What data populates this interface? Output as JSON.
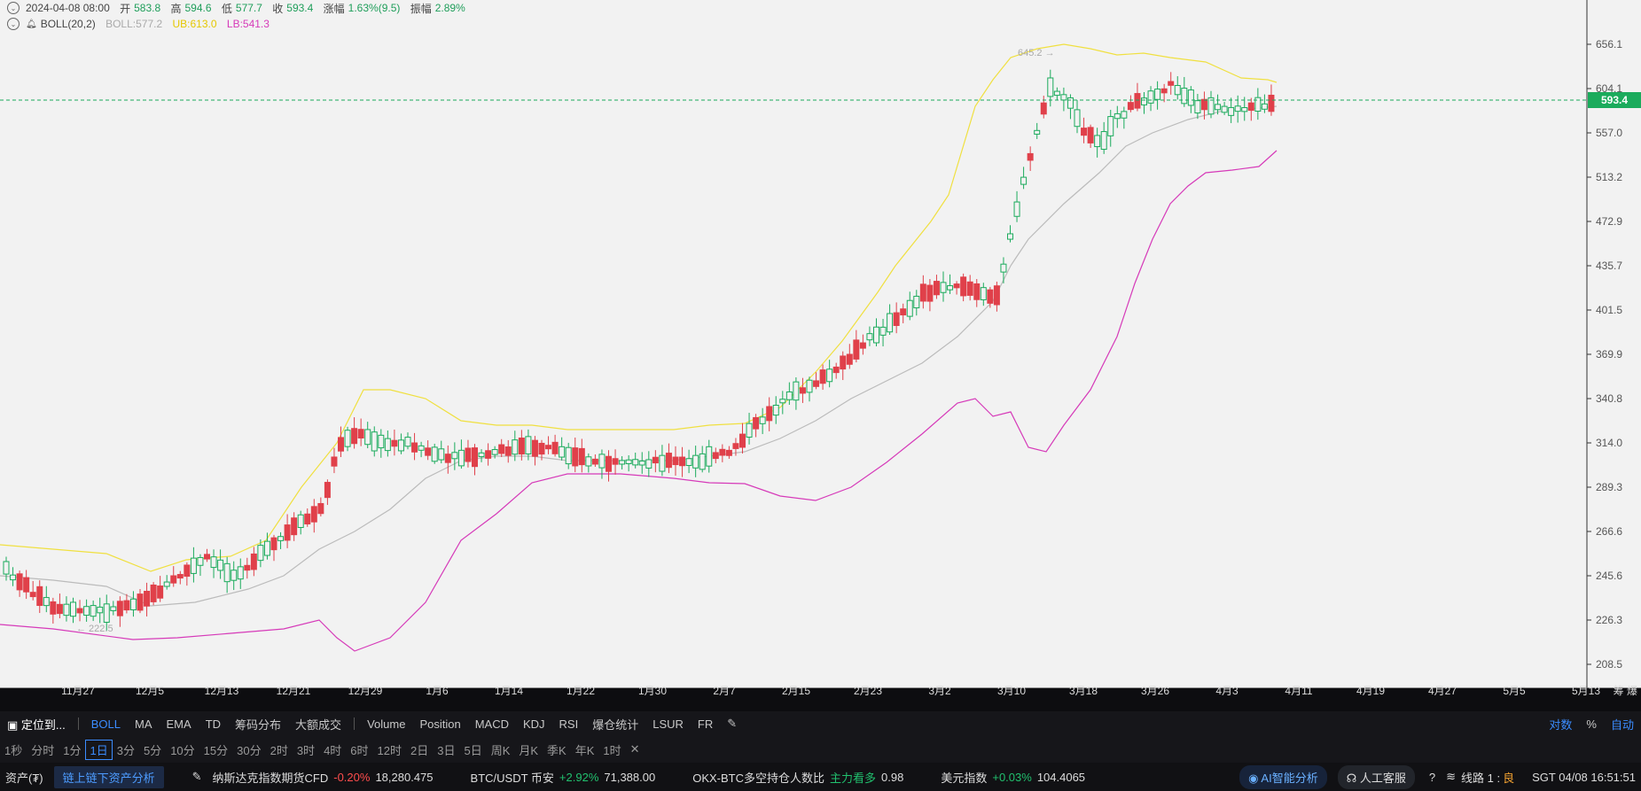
{
  "header": {
    "datetime": "2024-04-08 08:00",
    "open_label": "开",
    "open": "583.8",
    "high_label": "高",
    "high": "594.6",
    "low_label": "低",
    "low": "577.7",
    "close_label": "收",
    "close": "593.4",
    "change_label": "涨幅",
    "change": "1.63%(9.5)",
    "amp_label": "振幅",
    "amp": "2.89%",
    "boll_label": "BOLL(20,2)",
    "boll_mid": "BOLL:577.2",
    "boll_ub": "UB:613.0",
    "boll_lb": "LB:541.3"
  },
  "chart_data": {
    "type": "candlestick",
    "ylim": [
      200,
      672
    ],
    "y_ticks": [
      "656.1",
      "604.1",
      "557.0",
      "513.2",
      "472.9",
      "435.7",
      "401.5",
      "369.9",
      "340.8",
      "314.0",
      "289.3",
      "266.6",
      "245.6",
      "226.3",
      "208.5"
    ],
    "x_ticks": [
      "11月27",
      "12月5",
      "12月13",
      "12月21",
      "12月29",
      "1月6",
      "1月14",
      "1月22",
      "1月30",
      "2月7",
      "2月15",
      "2月23",
      "3月2",
      "3月10",
      "3月18",
      "3月26",
      "4月3",
      "4月11",
      "4月19",
      "4月27",
      "5月5",
      "5月13"
    ],
    "last_price": "593.4",
    "high_annotation": "645.2",
    "low_annotation": "222.5",
    "colors": {
      "up": "#1bab5c",
      "down": "#e0404a",
      "upper": "#f0e040",
      "middle": "#bbbbbb",
      "lower": "#d63ab9"
    }
  },
  "axis_corner": [
    "筹",
    "爆"
  ],
  "toolbar": {
    "locate": "定位到...",
    "indicators": [
      "BOLL",
      "MA",
      "EMA",
      "TD",
      "筹码分布",
      "大额成交"
    ],
    "sub_indicators": [
      "Volume",
      "Position",
      "MACD",
      "KDJ",
      "RSI",
      "爆仓统计",
      "LSUR",
      "FR"
    ],
    "right": [
      "对数",
      "%",
      "自动"
    ]
  },
  "intervals": [
    "1秒",
    "分时",
    "1分",
    "1日",
    "3分",
    "5分",
    "10分",
    "15分",
    "30分",
    "2时",
    "3时",
    "4时",
    "6时",
    "12时",
    "2日",
    "3日",
    "5日",
    "周K",
    "月K",
    "季K",
    "年K",
    "1时"
  ],
  "status": {
    "assets": "资产(₮)",
    "chain_btn": "链上链下资产分析",
    "nasdaq_name": "纳斯达克指数期货CFD",
    "nasdaq_change": "-0.20%",
    "nasdaq_value": "18,280.475",
    "btc_name": "BTC/USDT 币安",
    "btc_change": "+2.92%",
    "btc_value": "71,388.00",
    "okx_name": "OKX-BTC多空持仓人数比",
    "okx_note": "主力看多",
    "okx_value": "0.98",
    "usd_name": "美元指数",
    "usd_change": "+0.03%",
    "usd_value": "104.4065",
    "ai": "AI智能分析",
    "service": "人工客服",
    "line": "线路 1 :",
    "line_quality": "良",
    "time": "SGT  04/08 16:51:51"
  }
}
